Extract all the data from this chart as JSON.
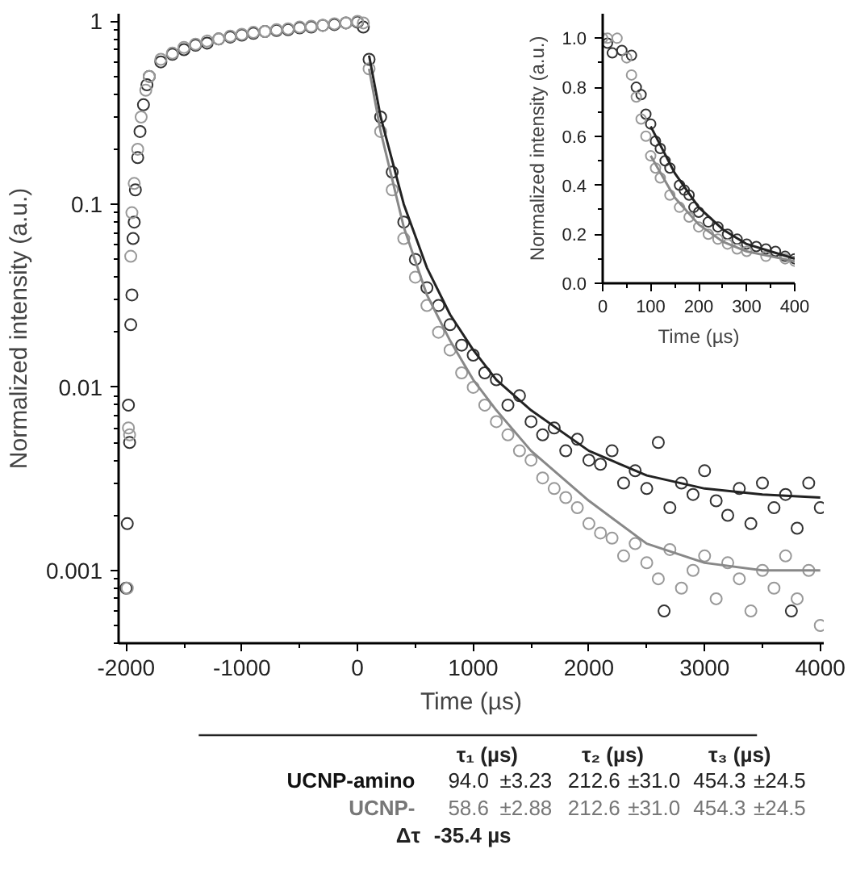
{
  "chart_data": [
    {
      "type": "scatter",
      "xlabel": "Time (µs)",
      "ylabel": "Normalized intensity (a.u.)",
      "log": "y",
      "xlim": [
        -2065,
        4030
      ],
      "ylim": [
        0.0004,
        1.1
      ],
      "xticks": [
        -2000,
        -1000,
        0,
        1000,
        2000,
        3000,
        4000
      ],
      "yticks": [
        0.001,
        0.01,
        0.1,
        1
      ],
      "grid": false,
      "series": [
        {
          "marker": "circle",
          "color": "#333333",
          "x": [
            -2000,
            -1990,
            -1980,
            -1970,
            -1960,
            -1950,
            -1940,
            -1930,
            -1920,
            -1900,
            -1880,
            -1850,
            -1820,
            -1800,
            -1700,
            -1600,
            -1500,
            -1400,
            -1300,
            -1200,
            -1100,
            -1000,
            -900,
            -800,
            -700,
            -600,
            -500,
            -400,
            -300,
            -200,
            -100,
            0,
            50,
            100,
            200,
            300,
            400,
            500,
            600,
            700,
            800,
            900,
            1000,
            1100,
            1200,
            1300,
            1400,
            1500,
            1600,
            1700,
            1800,
            1900,
            2000,
            2100,
            2200,
            2300,
            2400,
            2500,
            2600,
            2650,
            2700,
            2800,
            2900,
            3000,
            3100,
            3200,
            3300,
            3400,
            3500,
            3600,
            3700,
            3750,
            3800,
            3900,
            4000
          ],
          "values": [
            0.0008,
            0.0018,
            0.008,
            0.005,
            0.022,
            0.032,
            0.065,
            0.08,
            0.12,
            0.18,
            0.25,
            0.35,
            0.45,
            0.5,
            0.6,
            0.66,
            0.7,
            0.74,
            0.76,
            0.8,
            0.82,
            0.84,
            0.86,
            0.88,
            0.89,
            0.9,
            0.92,
            0.93,
            0.95,
            0.96,
            0.98,
            0.99,
            0.93,
            0.62,
            0.3,
            0.15,
            0.08,
            0.05,
            0.035,
            0.028,
            0.022,
            0.017,
            0.015,
            0.012,
            0.011,
            0.008,
            0.009,
            0.0065,
            0.0055,
            0.006,
            0.0045,
            0.0052,
            0.004,
            0.0038,
            0.0045,
            0.003,
            0.0035,
            0.0028,
            0.005,
            0.0006,
            0.0022,
            0.003,
            0.0026,
            0.0035,
            0.0024,
            0.002,
            0.0028,
            0.0018,
            0.003,
            0.0022,
            0.0026,
            0.0006,
            0.0017,
            0.003,
            0.0022
          ]
        },
        {
          "marker": "circle",
          "color": "#999999",
          "x": [
            -1990,
            -1980,
            -1970,
            -1960,
            -1950,
            -1930,
            -1900,
            -1870,
            -1830,
            -1800,
            -1700,
            -1600,
            -1500,
            -1400,
            -1300,
            -1200,
            -1100,
            -1000,
            -900,
            -800,
            -700,
            -600,
            -500,
            -400,
            -300,
            -200,
            -100,
            0,
            50,
            100,
            200,
            300,
            400,
            500,
            600,
            700,
            800,
            900,
            1000,
            1100,
            1200,
            1300,
            1400,
            1500,
            1600,
            1700,
            1800,
            1900,
            2000,
            2100,
            2200,
            2300,
            2400,
            2500,
            2600,
            2700,
            2800,
            2900,
            3000,
            3100,
            3200,
            3300,
            3400,
            3500,
            3600,
            3700,
            3800,
            3900,
            4000
          ],
          "values": [
            0.0008,
            0.006,
            0.0055,
            0.052,
            0.09,
            0.13,
            0.2,
            0.3,
            0.42,
            0.5,
            0.62,
            0.67,
            0.72,
            0.75,
            0.78,
            0.8,
            0.83,
            0.85,
            0.87,
            0.88,
            0.9,
            0.91,
            0.93,
            0.94,
            0.95,
            0.97,
            0.98,
            1.0,
            0.98,
            0.55,
            0.25,
            0.12,
            0.065,
            0.04,
            0.028,
            0.02,
            0.016,
            0.012,
            0.01,
            0.008,
            0.0065,
            0.0055,
            0.0045,
            0.004,
            0.0032,
            0.0028,
            0.0025,
            0.0022,
            0.0018,
            0.0016,
            0.0015,
            0.0012,
            0.0014,
            0.0011,
            0.0009,
            0.0013,
            0.0008,
            0.001,
            0.0012,
            0.0007,
            0.0011,
            0.0009,
            0.0006,
            0.001,
            0.0008,
            0.0012,
            0.0007,
            0.001,
            0.0005
          ]
        },
        {
          "type": "line",
          "marker": "none",
          "color": "#222222",
          "x": [
            100,
            200,
            400,
            600,
            800,
            1000,
            1200,
            1500,
            2000,
            2500,
            3000,
            3500,
            4000
          ],
          "values": [
            0.65,
            0.3,
            0.1,
            0.045,
            0.025,
            0.016,
            0.011,
            0.0075,
            0.0045,
            0.0033,
            0.0028,
            0.0026,
            0.0025
          ]
        },
        {
          "type": "line",
          "marker": "none",
          "color": "#888888",
          "x": [
            100,
            200,
            400,
            600,
            800,
            1000,
            1200,
            1500,
            2000,
            2500,
            3000,
            3500,
            4000
          ],
          "values": [
            0.55,
            0.25,
            0.075,
            0.032,
            0.018,
            0.011,
            0.0075,
            0.0045,
            0.0024,
            0.0014,
            0.0011,
            0.001,
            0.001
          ]
        }
      ],
      "annotations": [
        "τ₁ (µs)",
        "τ₂ (µs)",
        "τ₃ (µs)",
        "UCNP-amino",
        "94.0",
        "±3.23",
        "212.6",
        "±31.0",
        "454.3",
        "±24.5",
        "UCNP-",
        "58.6",
        "±2.88",
        "212.6",
        "±31.0",
        "454.3",
        "±24.5",
        "Δτ",
        "-35.4 µs"
      ]
    },
    {
      "type": "scatter",
      "xlabel": "Time (µs)",
      "ylabel": "Normalized intensity (a.u.)",
      "xlim": [
        0,
        400
      ],
      "ylim": [
        0,
        1.1
      ],
      "xticks": [
        0,
        100,
        200,
        300,
        400
      ],
      "yticks": [
        {
          "value": 0,
          "label": "0.0"
        },
        0.2,
        0.4,
        0.6,
        0.8,
        {
          "value": 1,
          "label": "1.0"
        }
      ],
      "grid": false,
      "series": [
        {
          "marker": "circle",
          "color": "#333333",
          "x": [
            10,
            20,
            40,
            60,
            70,
            80,
            90,
            100,
            110,
            120,
            130,
            140,
            160,
            170,
            180,
            190,
            200,
            220,
            240,
            260,
            280,
            300,
            320,
            340,
            360,
            380,
            400
          ],
          "values": [
            0.98,
            0.94,
            0.95,
            0.93,
            0.8,
            0.77,
            0.69,
            0.65,
            0.58,
            0.55,
            0.5,
            0.47,
            0.4,
            0.38,
            0.36,
            0.31,
            0.29,
            0.25,
            0.23,
            0.2,
            0.18,
            0.16,
            0.15,
            0.14,
            0.13,
            0.11,
            0.1
          ]
        },
        {
          "marker": "circle",
          "color": "#999999",
          "x": [
            0,
            10,
            30,
            50,
            60,
            70,
            80,
            90,
            100,
            110,
            120,
            140,
            160,
            180,
            200,
            220,
            240,
            260,
            280,
            300,
            340,
            380,
            400
          ],
          "values": [
            1.0,
            1.0,
            1.0,
            0.92,
            0.85,
            0.76,
            0.67,
            0.6,
            0.52,
            0.47,
            0.43,
            0.36,
            0.31,
            0.27,
            0.23,
            0.2,
            0.18,
            0.16,
            0.14,
            0.13,
            0.11,
            0.1,
            0.09
          ]
        },
        {
          "type": "line",
          "marker": "none",
          "color": "#222222",
          "x": [
            100,
            150,
            200,
            250,
            300,
            350,
            400
          ],
          "values": [
            0.64,
            0.45,
            0.31,
            0.22,
            0.16,
            0.13,
            0.1
          ]
        },
        {
          "type": "line",
          "marker": "none",
          "color": "#888888",
          "x": [
            100,
            150,
            200,
            250,
            300,
            350,
            400
          ],
          "values": [
            0.52,
            0.35,
            0.24,
            0.17,
            0.13,
            0.11,
            0.09
          ]
        }
      ]
    }
  ]
}
